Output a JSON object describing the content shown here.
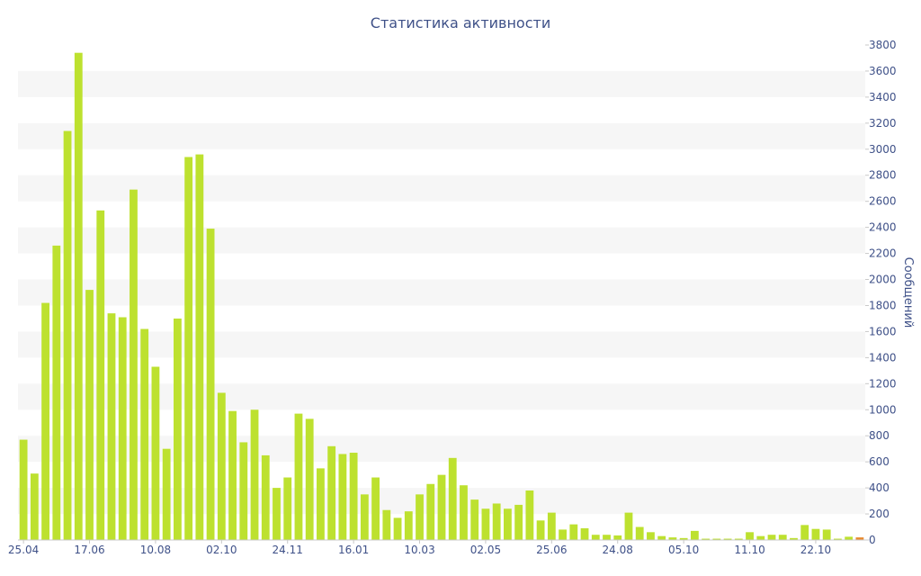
{
  "chart_data": {
    "type": "bar",
    "title": "Статистика активности",
    "ylabel": "Сообщений",
    "xlabel": "",
    "ylim": [
      0,
      3800
    ],
    "y_ticks": [
      0,
      200,
      400,
      600,
      800,
      1000,
      1200,
      1400,
      1600,
      1800,
      2000,
      2200,
      2400,
      2600,
      2800,
      3000,
      3200,
      3400,
      3600,
      3800
    ],
    "y_axis_position": "right",
    "x_tick_labels": [
      {
        "index": 0,
        "label": "25.04"
      },
      {
        "index": 6,
        "label": "17.06"
      },
      {
        "index": 12,
        "label": "10.08"
      },
      {
        "index": 18,
        "label": "02.10"
      },
      {
        "index": 24,
        "label": "24.11"
      },
      {
        "index": 30,
        "label": "16.01"
      },
      {
        "index": 36,
        "label": "10.03"
      },
      {
        "index": 42,
        "label": "02.05"
      },
      {
        "index": 48,
        "label": "25.06"
      },
      {
        "index": 54,
        "label": "24.08"
      },
      {
        "index": 60,
        "label": "05.10"
      },
      {
        "index": 66,
        "label": "11.10"
      },
      {
        "index": 72,
        "label": "22.10"
      }
    ],
    "values": [
      770,
      510,
      1820,
      2260,
      3140,
      3740,
      1920,
      2530,
      1740,
      1710,
      2690,
      1620,
      1330,
      700,
      1700,
      2940,
      2960,
      2390,
      1130,
      990,
      750,
      1000,
      650,
      400,
      480,
      970,
      930,
      550,
      720,
      660,
      670,
      350,
      480,
      230,
      170,
      220,
      350,
      430,
      500,
      630,
      420,
      310,
      240,
      280,
      240,
      270,
      380,
      150,
      210,
      80,
      120,
      90,
      40,
      40,
      35,
      210,
      100,
      60,
      30,
      20,
      15,
      70,
      10,
      10,
      10,
      10,
      60,
      30,
      40,
      40,
      15,
      115,
      85,
      80,
      10,
      25,
      20
    ],
    "bar_color": "#bde12f",
    "last_bar_color": "#e8892f",
    "band_color": "#f6f6f6",
    "text_color": "#3f5188",
    "grid": "alternating-bands",
    "legend": "none"
  }
}
